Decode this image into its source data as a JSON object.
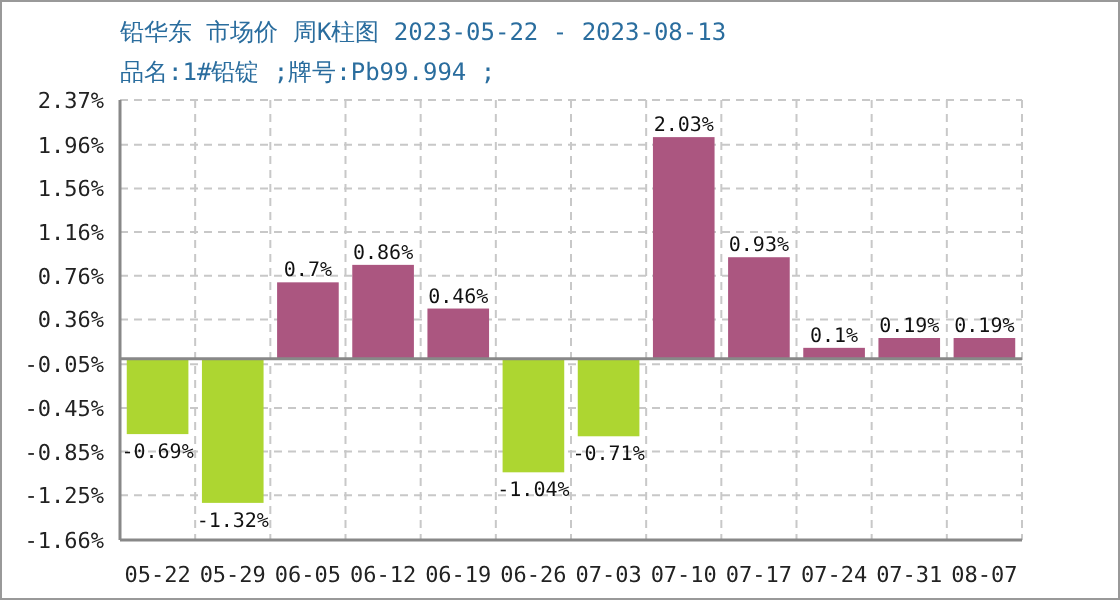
{
  "chart_data": {
    "type": "bar",
    "title": "铅华东 市场价 周K柱图 2023-05-22 - 2023-08-13",
    "subtitle": "品名:1#铅锭 ;牌号:Pb99.994 ;",
    "categories": [
      "05-22",
      "05-29",
      "06-05",
      "06-12",
      "06-19",
      "06-26",
      "07-03",
      "07-10",
      "07-17",
      "07-24",
      "07-31",
      "08-07"
    ],
    "values": [
      -0.69,
      -1.32,
      0.7,
      0.86,
      0.46,
      -1.04,
      -0.71,
      2.03,
      0.93,
      0.1,
      0.19,
      0.19
    ],
    "colors": [
      "#add631",
      "#add631",
      "#ab5680",
      "#ab5680",
      "#ab5680",
      "#add631",
      "#add631",
      "#ab5680",
      "#ab5680",
      "#ab5680",
      "#ab5680",
      "#ab5680"
    ],
    "value_labels": [
      "-0.69%",
      "-1.32%",
      "0.7%",
      "0.86%",
      "0.46%",
      "-1.04%",
      "-0.71%",
      "2.03%",
      "0.93%",
      "0.1%",
      "0.19%",
      "0.19%"
    ],
    "ylim": [
      -1.66,
      2.37
    ],
    "yticks": [
      {
        "value": -1.66,
        "label": "-1.66%"
      },
      {
        "value": -1.25,
        "label": "-1.25%"
      },
      {
        "value": -0.85,
        "label": "-0.85%"
      },
      {
        "value": -0.45,
        "label": "-0.45%"
      },
      {
        "value": -0.05,
        "label": "-0.05%"
      },
      {
        "value": 0.36,
        "label": "0.36%"
      },
      {
        "value": 0.76,
        "label": "0.76%"
      },
      {
        "value": 1.16,
        "label": "1.16%"
      },
      {
        "value": 1.56,
        "label": "1.56%"
      },
      {
        "value": 1.96,
        "label": "1.96%"
      },
      {
        "value": 2.37,
        "label": "2.37%"
      }
    ],
    "ref_lines": [
      {
        "axis": "y",
        "value": 0,
        "color": "#888888"
      }
    ],
    "grid": true
  }
}
